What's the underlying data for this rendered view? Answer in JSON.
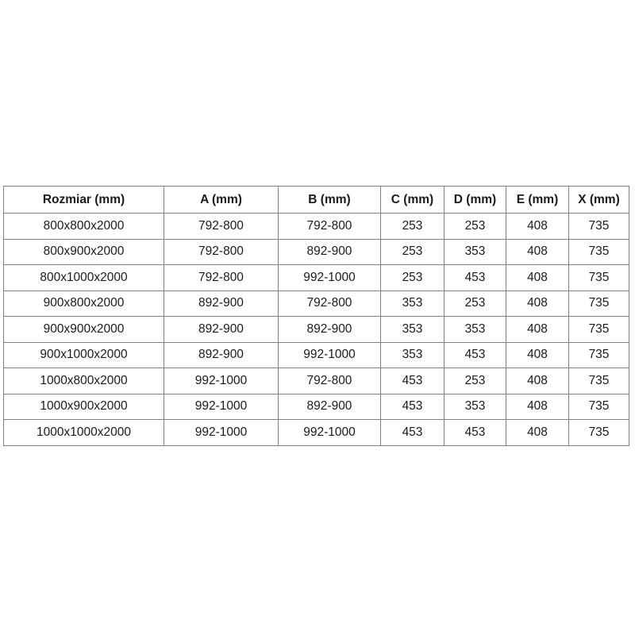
{
  "page": {
    "background_color": "#ffffff",
    "border_color": "#808080",
    "text_color": "#1a1a1a"
  },
  "chart_data": {
    "type": "table",
    "title": "",
    "headers": [
      "Rozmiar (mm)",
      "A (mm)",
      "B (mm)",
      "C (mm)",
      "D (mm)",
      "E (mm)",
      "X (mm)"
    ],
    "rows": [
      [
        "800x800x2000",
        "792-800",
        "792-800",
        "253",
        "253",
        "408",
        "735"
      ],
      [
        "800x900x2000",
        "792-800",
        "892-900",
        "253",
        "353",
        "408",
        "735"
      ],
      [
        "800x1000x2000",
        "792-800",
        "992-1000",
        "253",
        "453",
        "408",
        "735"
      ],
      [
        "900x800x2000",
        "892-900",
        "792-800",
        "353",
        "253",
        "408",
        "735"
      ],
      [
        "900x900x2000",
        "892-900",
        "892-900",
        "353",
        "353",
        "408",
        "735"
      ],
      [
        "900x1000x2000",
        "892-900",
        "992-1000",
        "353",
        "453",
        "408",
        "735"
      ],
      [
        "1000x800x2000",
        "992-1000",
        "792-800",
        "453",
        "253",
        "408",
        "735"
      ],
      [
        "1000x900x2000",
        "992-1000",
        "892-900",
        "453",
        "353",
        "408",
        "735"
      ],
      [
        "1000x1000x2000",
        "992-1000",
        "992-1000",
        "453",
        "453",
        "408",
        "735"
      ]
    ],
    "layout": {
      "grid": true,
      "header_bold": true
    }
  }
}
